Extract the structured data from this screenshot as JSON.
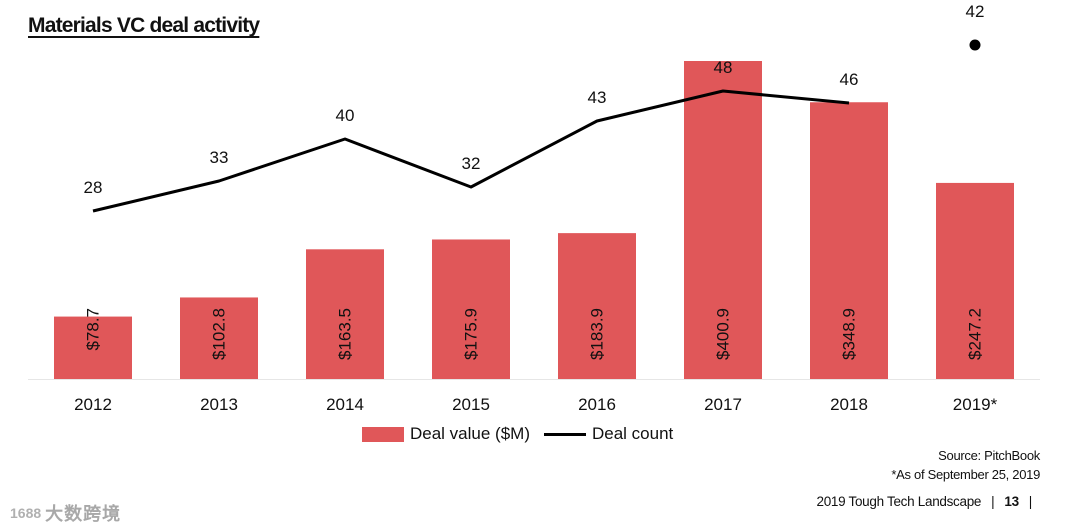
{
  "title": "Materials VC deal activity",
  "chart_data": {
    "type": "bar",
    "categories": [
      "2012",
      "2013",
      "2014",
      "2015",
      "2016",
      "2017",
      "2018",
      "2019*"
    ],
    "series": [
      {
        "name": "Deal value ($M)",
        "type": "bar",
        "values": [
          78.7,
          102.8,
          163.5,
          175.9,
          183.9,
          400.9,
          348.9,
          247.2
        ],
        "labels": [
          "$78.7",
          "$102.8",
          "$163.5",
          "$175.9",
          "$183.9",
          "$400.9",
          "$348.9",
          "$247.2"
        ],
        "color": "#e05759"
      },
      {
        "name": "Deal count",
        "type": "line",
        "values": [
          28,
          33,
          40,
          32,
          43,
          48,
          46,
          42
        ],
        "labels": [
          "28",
          "33",
          "40",
          "32",
          "43",
          "48",
          "46",
          "42"
        ],
        "color": "#000000",
        "last_point_marker_only": true
      }
    ],
    "legend": {
      "position": "bottom",
      "bar_label": "Deal value ($M)",
      "line_label": "Deal count"
    },
    "grid": false
  },
  "source": {
    "line1": "Source: PitchBook",
    "line2": "*As of September 25, 2019"
  },
  "footer": {
    "report": "2019 Tough Tech Landscape",
    "separator": "|",
    "page": "13",
    "trailing": "|"
  },
  "watermark": {
    "logo": "1688",
    "text": "大数跨境"
  }
}
